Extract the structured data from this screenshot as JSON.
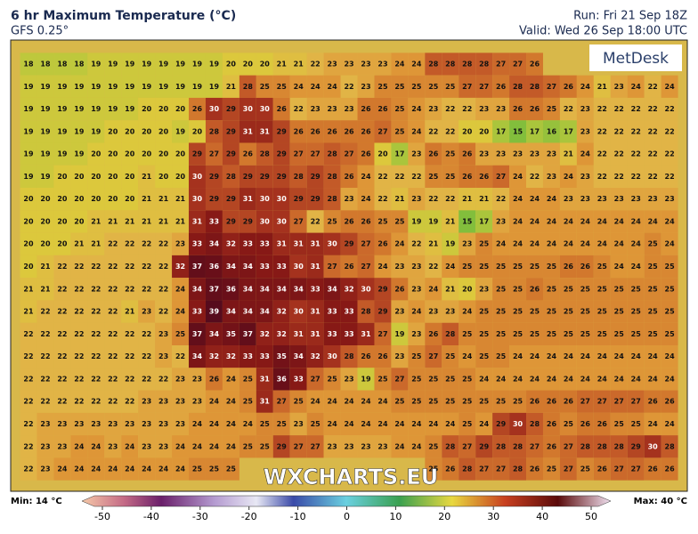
{
  "header": {
    "title": "6 hr Maximum Temperature (°C)",
    "subtitle": "GFS 0.25°",
    "run": "Run: Fri 21 Sep 18Z",
    "valid": "Valid: Wed 26 Sep 18:00 UTC"
  },
  "map": {
    "logo": "MetDesk",
    "watermark": "WXCHARTS.EU",
    "grid": [
      [
        18,
        18,
        18,
        18,
        19,
        19,
        19,
        19,
        19,
        19,
        19,
        19,
        20,
        20,
        20,
        21,
        21,
        22,
        23,
        23,
        23,
        23,
        24,
        24,
        28,
        28,
        28,
        28,
        27,
        27,
        26,
        null,
        null,
        null,
        null,
        null,
        null,
        null,
        null
      ],
      [
        19,
        19,
        19,
        19,
        19,
        19,
        19,
        19,
        19,
        19,
        19,
        19,
        21,
        28,
        25,
        25,
        24,
        24,
        24,
        22,
        23,
        25,
        25,
        25,
        25,
        25,
        27,
        27,
        26,
        28,
        28,
        27,
        26,
        24,
        21,
        23,
        24,
        22,
        24
      ],
      [
        19,
        19,
        19,
        19,
        19,
        19,
        19,
        20,
        20,
        20,
        26,
        30,
        29,
        30,
        30,
        26,
        22,
        23,
        23,
        23,
        26,
        26,
        25,
        24,
        23,
        22,
        22,
        23,
        23,
        26,
        26,
        25,
        22,
        23,
        22,
        22,
        22,
        22,
        22
      ],
      [
        19,
        19,
        19,
        19,
        19,
        20,
        20,
        20,
        20,
        19,
        20,
        28,
        29,
        31,
        31,
        29,
        26,
        26,
        26,
        26,
        26,
        27,
        25,
        24,
        22,
        22,
        20,
        20,
        17,
        15,
        17,
        16,
        17,
        23,
        22,
        22,
        22,
        22,
        22
      ],
      [
        19,
        19,
        19,
        19,
        20,
        20,
        20,
        20,
        20,
        20,
        29,
        27,
        29,
        26,
        28,
        29,
        27,
        27,
        28,
        27,
        26,
        20,
        17,
        23,
        26,
        25,
        26,
        23,
        23,
        23,
        23,
        23,
        21,
        24,
        22,
        22,
        22,
        22,
        22
      ],
      [
        19,
        19,
        20,
        20,
        20,
        20,
        20,
        21,
        20,
        20,
        30,
        29,
        28,
        29,
        29,
        29,
        28,
        29,
        28,
        26,
        24,
        22,
        22,
        22,
        25,
        25,
        26,
        26,
        27,
        24,
        22,
        23,
        24,
        23,
        22,
        22,
        22,
        22,
        22
      ],
      [
        20,
        20,
        20,
        20,
        20,
        20,
        20,
        21,
        21,
        21,
        30,
        29,
        29,
        31,
        30,
        30,
        29,
        29,
        28,
        23,
        24,
        22,
        21,
        23,
        22,
        22,
        21,
        21,
        22,
        24,
        24,
        24,
        23,
        23,
        23,
        23,
        23,
        23,
        23
      ],
      [
        20,
        20,
        20,
        20,
        21,
        21,
        21,
        21,
        21,
        21,
        31,
        33,
        29,
        29,
        30,
        30,
        27,
        22,
        25,
        26,
        26,
        25,
        25,
        19,
        19,
        21,
        15,
        17,
        23,
        24,
        24,
        24,
        24,
        24,
        24,
        24,
        24,
        24,
        24
      ],
      [
        20,
        20,
        20,
        21,
        21,
        22,
        22,
        22,
        22,
        23,
        33,
        34,
        32,
        33,
        33,
        31,
        31,
        31,
        30,
        29,
        27,
        26,
        24,
        22,
        21,
        19,
        23,
        25,
        24,
        24,
        24,
        24,
        24,
        24,
        24,
        24,
        24,
        25,
        24
      ],
      [
        20,
        21,
        22,
        22,
        22,
        22,
        22,
        22,
        22,
        32,
        37,
        36,
        34,
        34,
        33,
        33,
        30,
        31,
        27,
        26,
        27,
        24,
        23,
        23,
        22,
        24,
        25,
        25,
        25,
        25,
        25,
        25,
        26,
        26,
        25,
        24,
        24,
        25,
        25
      ],
      [
        21,
        21,
        22,
        22,
        22,
        22,
        22,
        22,
        22,
        24,
        34,
        37,
        36,
        34,
        34,
        34,
        34,
        33,
        34,
        32,
        30,
        29,
        26,
        23,
        24,
        21,
        20,
        23,
        25,
        25,
        26,
        25,
        25,
        25,
        25,
        25,
        25,
        25,
        25
      ],
      [
        21,
        22,
        22,
        22,
        22,
        22,
        21,
        23,
        22,
        24,
        33,
        39,
        34,
        34,
        34,
        32,
        30,
        31,
        33,
        33,
        28,
        29,
        23,
        24,
        23,
        23,
        24,
        25,
        25,
        25,
        25,
        25,
        25,
        25,
        25,
        25,
        25,
        25,
        25
      ],
      [
        22,
        22,
        22,
        22,
        22,
        22,
        22,
        22,
        23,
        25,
        37,
        34,
        35,
        37,
        32,
        32,
        31,
        31,
        33,
        33,
        31,
        27,
        19,
        23,
        26,
        28,
        25,
        25,
        25,
        25,
        25,
        25,
        25,
        25,
        25,
        25,
        25,
        25,
        25
      ],
      [
        22,
        22,
        22,
        22,
        22,
        22,
        22,
        22,
        23,
        22,
        34,
        32,
        32,
        33,
        33,
        35,
        34,
        32,
        30,
        28,
        26,
        26,
        23,
        25,
        27,
        25,
        24,
        25,
        25,
        24,
        24,
        24,
        24,
        24,
        24,
        24,
        24,
        24,
        24
      ],
      [
        22,
        22,
        22,
        22,
        22,
        22,
        22,
        22,
        22,
        23,
        23,
        26,
        24,
        25,
        31,
        36,
        33,
        27,
        25,
        23,
        19,
        25,
        27,
        25,
        25,
        25,
        25,
        24,
        24,
        24,
        24,
        24,
        24,
        24,
        24,
        24,
        24,
        24,
        24
      ],
      [
        22,
        22,
        22,
        22,
        22,
        22,
        22,
        23,
        23,
        23,
        23,
        24,
        24,
        25,
        31,
        27,
        25,
        24,
        24,
        24,
        24,
        24,
        25,
        25,
        25,
        25,
        25,
        25,
        25,
        25,
        26,
        26,
        26,
        27,
        27,
        27,
        27,
        26,
        26
      ],
      [
        22,
        23,
        23,
        23,
        23,
        23,
        23,
        23,
        23,
        23,
        24,
        24,
        24,
        24,
        25,
        25,
        23,
        25,
        24,
        24,
        24,
        24,
        24,
        24,
        24,
        24,
        25,
        24,
        29,
        30,
        28,
        26,
        25,
        26,
        26,
        25,
        25,
        24,
        24
      ],
      [
        22,
        23,
        23,
        24,
        24,
        23,
        24,
        23,
        23,
        24,
        24,
        24,
        24,
        25,
        25,
        29,
        27,
        27,
        23,
        23,
        23,
        23,
        24,
        24,
        25,
        28,
        27,
        29,
        28,
        28,
        27,
        26,
        27,
        28,
        28,
        28,
        29,
        30,
        28
      ],
      [
        22,
        23,
        24,
        24,
        24,
        24,
        24,
        24,
        24,
        24,
        25,
        25,
        25,
        null,
        null,
        null,
        null,
        null,
        null,
        null,
        null,
        null,
        null,
        null,
        25,
        26,
        28,
        27,
        27,
        28,
        26,
        25,
        27,
        25,
        26,
        27,
        27,
        26,
        26
      ]
    ]
  },
  "legend": {
    "min": "Min: 14 °C",
    "max": "Max: 40 °C",
    "ticks": [
      -50,
      -40,
      -30,
      -20,
      -10,
      0,
      10,
      20,
      30,
      40,
      50
    ]
  }
}
